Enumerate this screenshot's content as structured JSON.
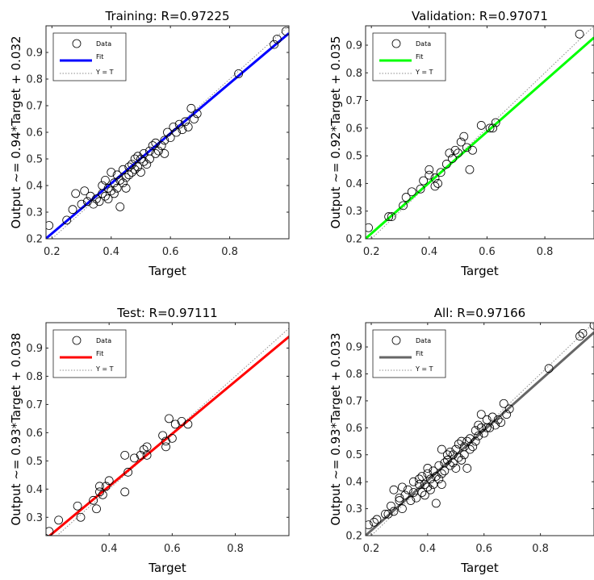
{
  "chart_data": [
    {
      "type": "scatter",
      "title": "Training: R=0.97225",
      "xlabel": "Target",
      "ylabel": "Output ~= 0.94*Target + 0.032",
      "xlim": [
        0.18,
        1.0
      ],
      "ylim": [
        0.2,
        1.0
      ],
      "xticks": [
        0.2,
        0.4,
        0.6,
        0.8
      ],
      "xtick_labels": [
        "0.2",
        "0.4",
        "0.6",
        "0.8"
      ],
      "yticks": [
        0.2,
        0.3,
        0.4,
        0.5,
        0.6,
        0.7,
        0.8,
        0.9
      ],
      "ytick_labels": [
        "0.2",
        "0.3",
        "0.4",
        "0.5",
        "0.6",
        "0.7",
        "0.8",
        "0.9"
      ],
      "fit": {
        "slope": 0.94,
        "intercept": 0.032
      },
      "fit_color": "#0000ff",
      "legend": [
        "Data",
        "Fit",
        "Y = T"
      ],
      "legend_position": "top-left",
      "points": [
        [
          0.19,
          0.25
        ],
        [
          0.25,
          0.27
        ],
        [
          0.27,
          0.31
        ],
        [
          0.28,
          0.37
        ],
        [
          0.3,
          0.33
        ],
        [
          0.31,
          0.38
        ],
        [
          0.32,
          0.34
        ],
        [
          0.33,
          0.36
        ],
        [
          0.34,
          0.33
        ],
        [
          0.35,
          0.35
        ],
        [
          0.36,
          0.34
        ],
        [
          0.37,
          0.37
        ],
        [
          0.37,
          0.4
        ],
        [
          0.38,
          0.36
        ],
        [
          0.38,
          0.42
        ],
        [
          0.39,
          0.39
        ],
        [
          0.39,
          0.35
        ],
        [
          0.4,
          0.38
        ],
        [
          0.4,
          0.45
        ],
        [
          0.41,
          0.41
        ],
        [
          0.41,
          0.37
        ],
        [
          0.42,
          0.44
        ],
        [
          0.42,
          0.39
        ],
        [
          0.43,
          0.32
        ],
        [
          0.43,
          0.42
        ],
        [
          0.44,
          0.46
        ],
        [
          0.44,
          0.41
        ],
        [
          0.45,
          0.43
        ],
        [
          0.45,
          0.39
        ],
        [
          0.46,
          0.47
        ],
        [
          0.46,
          0.44
        ],
        [
          0.47,
          0.48
        ],
        [
          0.47,
          0.45
        ],
        [
          0.48,
          0.5
        ],
        [
          0.48,
          0.46
        ],
        [
          0.49,
          0.51
        ],
        [
          0.49,
          0.47
        ],
        [
          0.5,
          0.5
        ],
        [
          0.5,
          0.45
        ],
        [
          0.51,
          0.52
        ],
        [
          0.51,
          0.49
        ],
        [
          0.52,
          0.48
        ],
        [
          0.53,
          0.53
        ],
        [
          0.53,
          0.5
        ],
        [
          0.54,
          0.55
        ],
        [
          0.55,
          0.52
        ],
        [
          0.55,
          0.56
        ],
        [
          0.56,
          0.53
        ],
        [
          0.57,
          0.55
        ],
        [
          0.58,
          0.57
        ],
        [
          0.58,
          0.52
        ],
        [
          0.59,
          0.6
        ],
        [
          0.6,
          0.58
        ],
        [
          0.61,
          0.62
        ],
        [
          0.62,
          0.6
        ],
        [
          0.63,
          0.63
        ],
        [
          0.64,
          0.61
        ],
        [
          0.65,
          0.64
        ],
        [
          0.66,
          0.62
        ],
        [
          0.67,
          0.69
        ],
        [
          0.68,
          0.65
        ],
        [
          0.69,
          0.67
        ],
        [
          0.83,
          0.82
        ],
        [
          0.95,
          0.93
        ],
        [
          0.96,
          0.95
        ],
        [
          0.99,
          0.98
        ]
      ]
    },
    {
      "type": "scatter",
      "title": "Validation: R=0.97071",
      "xlabel": "Target",
      "ylabel": "Output ~= 0.92*Target + 0.035",
      "xlim": [
        0.18,
        0.97
      ],
      "ylim": [
        0.2,
        0.97
      ],
      "xticks": [
        0.2,
        0.4,
        0.6,
        0.8
      ],
      "xtick_labels": [
        "0.2",
        "0.4",
        "0.6",
        "0.8"
      ],
      "yticks": [
        0.2,
        0.3,
        0.4,
        0.5,
        0.6,
        0.7,
        0.8,
        0.9
      ],
      "ytick_labels": [
        "0.2",
        "0.3",
        "0.4",
        "0.5",
        "0.6",
        "0.7",
        "0.8",
        "0.9"
      ],
      "fit": {
        "slope": 0.92,
        "intercept": 0.035
      },
      "fit_color": "#00ff00",
      "legend": [
        "Data",
        "Fit",
        "Y = T"
      ],
      "legend_position": "top-left",
      "points": [
        [
          0.19,
          0.24
        ],
        [
          0.26,
          0.28
        ],
        [
          0.27,
          0.28
        ],
        [
          0.31,
          0.32
        ],
        [
          0.32,
          0.35
        ],
        [
          0.34,
          0.37
        ],
        [
          0.37,
          0.38
        ],
        [
          0.38,
          0.41
        ],
        [
          0.4,
          0.43
        ],
        [
          0.4,
          0.45
        ],
        [
          0.42,
          0.42
        ],
        [
          0.42,
          0.39
        ],
        [
          0.43,
          0.4
        ],
        [
          0.44,
          0.44
        ],
        [
          0.46,
          0.47
        ],
        [
          0.47,
          0.51
        ],
        [
          0.48,
          0.49
        ],
        [
          0.49,
          0.52
        ],
        [
          0.5,
          0.51
        ],
        [
          0.51,
          0.55
        ],
        [
          0.52,
          0.57
        ],
        [
          0.53,
          0.53
        ],
        [
          0.54,
          0.45
        ],
        [
          0.55,
          0.52
        ],
        [
          0.58,
          0.61
        ],
        [
          0.61,
          0.6
        ],
        [
          0.62,
          0.6
        ],
        [
          0.63,
          0.62
        ],
        [
          0.92,
          0.94
        ]
      ]
    },
    {
      "type": "scatter",
      "title": "Test: R=0.97111",
      "xlabel": "Target",
      "ylabel": "Output ~= 0.93*Target + 0.038",
      "xlim": [
        0.2,
        0.97
      ],
      "ylim": [
        0.235,
        0.99
      ],
      "xticks": [
        0.4,
        0.6,
        0.8
      ],
      "xtick_labels": [
        "0.4",
        "0.6",
        "0.8"
      ],
      "yticks": [
        0.3,
        0.4,
        0.5,
        0.6,
        0.7,
        0.8,
        0.9
      ],
      "ytick_labels": [
        "0.3",
        "0.4",
        "0.5",
        "0.6",
        "0.7",
        "0.8",
        "0.9"
      ],
      "fit": {
        "slope": 0.93,
        "intercept": 0.038
      },
      "fit_color": "#ff0000",
      "legend": [
        "Data",
        "Fit",
        "Y = T"
      ],
      "legend_position": "top-left",
      "points": [
        [
          0.21,
          0.25
        ],
        [
          0.24,
          0.29
        ],
        [
          0.3,
          0.34
        ],
        [
          0.31,
          0.3
        ],
        [
          0.35,
          0.36
        ],
        [
          0.36,
          0.33
        ],
        [
          0.37,
          0.39
        ],
        [
          0.37,
          0.41
        ],
        [
          0.38,
          0.38
        ],
        [
          0.39,
          0.41
        ],
        [
          0.4,
          0.43
        ],
        [
          0.45,
          0.52
        ],
        [
          0.45,
          0.39
        ],
        [
          0.46,
          0.46
        ],
        [
          0.48,
          0.51
        ],
        [
          0.5,
          0.52
        ],
        [
          0.51,
          0.54
        ],
        [
          0.52,
          0.55
        ],
        [
          0.52,
          0.52
        ],
        [
          0.57,
          0.59
        ],
        [
          0.58,
          0.55
        ],
        [
          0.58,
          0.57
        ],
        [
          0.59,
          0.65
        ],
        [
          0.6,
          0.58
        ],
        [
          0.61,
          0.63
        ],
        [
          0.63,
          0.64
        ],
        [
          0.65,
          0.63
        ]
      ]
    },
    {
      "type": "scatter",
      "title": "All: R=0.97166",
      "xlabel": "Target",
      "ylabel": "Output ~= 0.93*Target + 0.033",
      "xlim": [
        0.18,
        0.99
      ],
      "ylim": [
        0.2,
        0.99
      ],
      "xticks": [
        0.2,
        0.4,
        0.6,
        0.8
      ],
      "xtick_labels": [
        "0.2",
        "0.4",
        "0.6",
        "0.8"
      ],
      "yticks": [
        0.2,
        0.3,
        0.4,
        0.5,
        0.6,
        0.7,
        0.8,
        0.9
      ],
      "ytick_labels": [
        "0.2",
        "0.3",
        "0.4",
        "0.5",
        "0.6",
        "0.7",
        "0.8",
        "0.9"
      ],
      "fit": {
        "slope": 0.93,
        "intercept": 0.033
      },
      "fit_color": "#666666",
      "legend": [
        "Data",
        "Fit",
        "Y = T"
      ],
      "legend_position": "top-left",
      "points": [
        [
          0.19,
          0.24
        ],
        [
          0.21,
          0.25
        ],
        [
          0.22,
          0.26
        ],
        [
          0.25,
          0.28
        ],
        [
          0.26,
          0.28
        ],
        [
          0.27,
          0.31
        ],
        [
          0.28,
          0.29
        ],
        [
          0.28,
          0.37
        ],
        [
          0.3,
          0.34
        ],
        [
          0.3,
          0.33
        ],
        [
          0.31,
          0.38
        ],
        [
          0.31,
          0.3
        ],
        [
          0.32,
          0.35
        ],
        [
          0.33,
          0.37
        ],
        [
          0.34,
          0.33
        ],
        [
          0.35,
          0.36
        ],
        [
          0.35,
          0.4
        ],
        [
          0.36,
          0.34
        ],
        [
          0.37,
          0.39
        ],
        [
          0.37,
          0.41
        ],
        [
          0.38,
          0.36
        ],
        [
          0.38,
          0.42
        ],
        [
          0.39,
          0.39
        ],
        [
          0.39,
          0.35
        ],
        [
          0.4,
          0.43
        ],
        [
          0.4,
          0.38
        ],
        [
          0.4,
          0.45
        ],
        [
          0.41,
          0.41
        ],
        [
          0.41,
          0.37
        ],
        [
          0.42,
          0.44
        ],
        [
          0.42,
          0.39
        ],
        [
          0.43,
          0.32
        ],
        [
          0.43,
          0.42
        ],
        [
          0.44,
          0.46
        ],
        [
          0.44,
          0.41
        ],
        [
          0.45,
          0.43
        ],
        [
          0.45,
          0.39
        ],
        [
          0.45,
          0.52
        ],
        [
          0.46,
          0.47
        ],
        [
          0.46,
          0.44
        ],
        [
          0.47,
          0.48
        ],
        [
          0.47,
          0.5
        ],
        [
          0.48,
          0.46
        ],
        [
          0.48,
          0.51
        ],
        [
          0.49,
          0.5
        ],
        [
          0.49,
          0.47
        ],
        [
          0.5,
          0.52
        ],
        [
          0.5,
          0.45
        ],
        [
          0.51,
          0.54
        ],
        [
          0.51,
          0.49
        ],
        [
          0.52,
          0.55
        ],
        [
          0.52,
          0.48
        ],
        [
          0.53,
          0.5
        ],
        [
          0.53,
          0.53
        ],
        [
          0.54,
          0.55
        ],
        [
          0.54,
          0.45
        ],
        [
          0.55,
          0.52
        ],
        [
          0.55,
          0.56
        ],
        [
          0.56,
          0.53
        ],
        [
          0.57,
          0.59
        ],
        [
          0.57,
          0.55
        ],
        [
          0.58,
          0.57
        ],
        [
          0.58,
          0.61
        ],
        [
          0.59,
          0.65
        ],
        [
          0.59,
          0.6
        ],
        [
          0.6,
          0.58
        ],
        [
          0.61,
          0.63
        ],
        [
          0.61,
          0.6
        ],
        [
          0.62,
          0.6
        ],
        [
          0.63,
          0.64
        ],
        [
          0.64,
          0.61
        ],
        [
          0.65,
          0.63
        ],
        [
          0.66,
          0.62
        ],
        [
          0.67,
          0.69
        ],
        [
          0.68,
          0.65
        ],
        [
          0.69,
          0.67
        ],
        [
          0.83,
          0.82
        ],
        [
          0.94,
          0.94
        ],
        [
          0.95,
          0.95
        ],
        [
          0.99,
          0.98
        ]
      ]
    }
  ]
}
